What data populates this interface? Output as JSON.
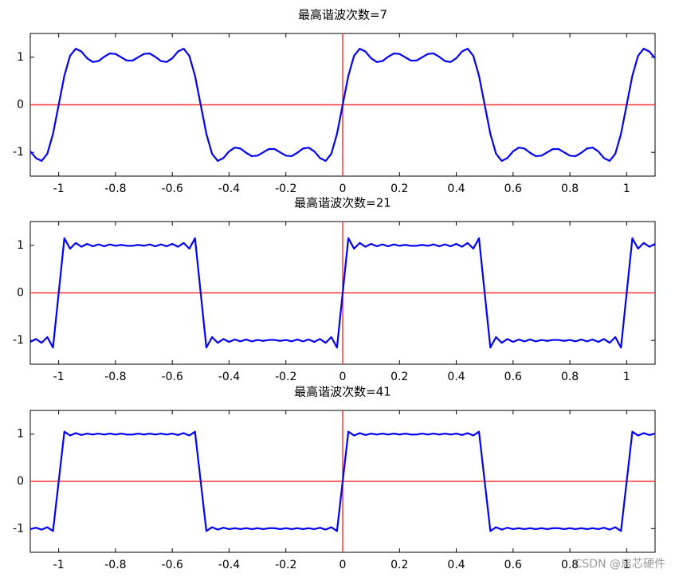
{
  "chart_data": [
    {
      "type": "line",
      "title": "最高谐波次数=7",
      "color": "#0000ff",
      "reference_color": "#ff3333",
      "xlim": [
        -1.1,
        1.1
      ],
      "ylim": [
        -1.5,
        1.5
      ],
      "xticks": [
        -1,
        -0.8,
        -0.6,
        -0.4,
        -0.2,
        0,
        0.2,
        0.4,
        0.6,
        0.8,
        1
      ],
      "yticks": [
        -1,
        0,
        1
      ],
      "x": [
        -1.1,
        -1.08,
        -1.06,
        -1.04,
        -1.02,
        -1,
        -0.98,
        -0.96,
        -0.94,
        -0.92,
        -0.9,
        -0.88,
        -0.86,
        -0.84,
        -0.82,
        -0.8,
        -0.78,
        -0.76,
        -0.74,
        -0.72,
        -0.7,
        -0.68,
        -0.66,
        -0.64,
        -0.62,
        -0.6,
        -0.58,
        -0.56,
        -0.54,
        -0.52,
        -0.5,
        -0.48,
        -0.46,
        -0.44,
        -0.42,
        -0.4,
        -0.38,
        -0.36,
        -0.34,
        -0.32,
        -0.3,
        -0.28,
        -0.26,
        -0.24,
        -0.22,
        -0.2,
        -0.18,
        -0.16,
        -0.14,
        -0.12,
        -0.1,
        -0.08,
        -0.06,
        -0.04,
        -0.02,
        0,
        0.02,
        0.04,
        0.06,
        0.08,
        0.1,
        0.12,
        0.14,
        0.16,
        0.18,
        0.2,
        0.22,
        0.24,
        0.26,
        0.28,
        0.3,
        0.32,
        0.34,
        0.36,
        0.38,
        0.4,
        0.42,
        0.44,
        0.46,
        0.48,
        0.5,
        0.52,
        0.54,
        0.56,
        0.58,
        0.6,
        0.62,
        0.64,
        0.66,
        0.68,
        0.7,
        0.72,
        0.74,
        0.76,
        0.78,
        0.8,
        0.82,
        0.84,
        0.86,
        0.88,
        0.9,
        0.92,
        0.94,
        0.96,
        0.98,
        1,
        1.02,
        1.04,
        1.06,
        1.08,
        1.1
      ],
      "values": [
        -0.98,
        -1.12,
        -1.18,
        -1.03,
        -0.61,
        0,
        0.61,
        1.03,
        1.18,
        1.12,
        0.98,
        0.9,
        0.92,
        1.01,
        1.08,
        1.07,
        1,
        0.93,
        0.93,
        1,
        1.07,
        1.08,
        1.01,
        0.92,
        0.9,
        0.98,
        1.12,
        1.18,
        1.03,
        0.61,
        0,
        -0.61,
        -1.03,
        -1.18,
        -1.12,
        -0.98,
        -0.9,
        -0.92,
        -1.01,
        -1.08,
        -1.07,
        -1,
        -0.93,
        -0.93,
        -1,
        -1.07,
        -1.08,
        -1.01,
        -0.92,
        -0.9,
        -0.98,
        -1.12,
        -1.18,
        -1.03,
        -0.61,
        0,
        0.61,
        1.03,
        1.18,
        1.12,
        0.98,
        0.9,
        0.92,
        1.01,
        1.08,
        1.07,
        1,
        0.93,
        0.93,
        1,
        1.07,
        1.08,
        1.01,
        0.92,
        0.9,
        0.98,
        1.12,
        1.18,
        1.03,
        0.61,
        0,
        -0.61,
        -1.03,
        -1.18,
        -1.12,
        -0.98,
        -0.9,
        -0.92,
        -1.01,
        -1.08,
        -1.07,
        -1,
        -0.93,
        -0.93,
        -1,
        -1.07,
        -1.08,
        -1.01,
        -0.92,
        -0.9,
        -0.98,
        -1.12,
        -1.18,
        -1.03,
        -0.61,
        0,
        0.61,
        1.03,
        1.18,
        1.12,
        0.98
      ]
    },
    {
      "type": "line",
      "title": "最高谐波次数=21",
      "color": "#0000ff",
      "reference_color": "#ff3333",
      "xlim": [
        -1.1,
        1.1
      ],
      "ylim": [
        -1.5,
        1.5
      ],
      "xticks": [
        -1,
        -0.8,
        -0.6,
        -0.4,
        -0.2,
        0,
        0.2,
        0.4,
        0.6,
        0.8,
        1
      ],
      "yticks": [
        -1,
        0,
        1
      ],
      "x": [
        -1.1,
        -1.08,
        -1.06,
        -1.04,
        -1.02,
        -1,
        -0.98,
        -0.96,
        -0.94,
        -0.92,
        -0.9,
        -0.88,
        -0.86,
        -0.84,
        -0.82,
        -0.8,
        -0.78,
        -0.76,
        -0.74,
        -0.72,
        -0.7,
        -0.68,
        -0.66,
        -0.64,
        -0.62,
        -0.6,
        -0.58,
        -0.56,
        -0.54,
        -0.52,
        -0.5,
        -0.48,
        -0.46,
        -0.44,
        -0.42,
        -0.4,
        -0.38,
        -0.36,
        -0.34,
        -0.32,
        -0.3,
        -0.28,
        -0.26,
        -0.24,
        -0.22,
        -0.2,
        -0.18,
        -0.16,
        -0.14,
        -0.12,
        -0.1,
        -0.08,
        -0.06,
        -0.04,
        -0.02,
        0,
        0.02,
        0.04,
        0.06,
        0.08,
        0.1,
        0.12,
        0.14,
        0.16,
        0.18,
        0.2,
        0.22,
        0.24,
        0.26,
        0.28,
        0.3,
        0.32,
        0.34,
        0.36,
        0.38,
        0.4,
        0.42,
        0.44,
        0.46,
        0.48,
        0.5,
        0.52,
        0.54,
        0.56,
        0.58,
        0.6,
        0.62,
        0.64,
        0.66,
        0.68,
        0.7,
        0.72,
        0.74,
        0.76,
        0.78,
        0.8,
        0.82,
        0.84,
        0.86,
        0.88,
        0.9,
        0.92,
        0.94,
        0.96,
        0.98,
        1,
        1.02,
        1.04,
        1.06,
        1.08,
        1.1
      ],
      "values": [
        -1.03,
        -0.97,
        -1.05,
        -0.93,
        -1.15,
        0,
        1.15,
        0.93,
        1.05,
        0.97,
        1.03,
        0.98,
        1.02,
        0.98,
        1.02,
        0.99,
        1.01,
        0.99,
        0.99,
        1.01,
        0.99,
        1.02,
        0.98,
        1.02,
        0.98,
        1.03,
        0.97,
        1.05,
        0.93,
        1.15,
        0,
        -1.15,
        -0.93,
        -1.05,
        -0.97,
        -1.03,
        -0.98,
        -1.02,
        -0.98,
        -1.02,
        -0.99,
        -1.01,
        -0.99,
        -0.99,
        -1.01,
        -0.99,
        -1.02,
        -0.98,
        -1.02,
        -0.98,
        -1.03,
        -0.97,
        -1.05,
        -0.93,
        -1.15,
        0,
        1.15,
        0.93,
        1.05,
        0.97,
        1.03,
        0.98,
        1.02,
        0.98,
        1.02,
        0.99,
        1.01,
        0.99,
        0.99,
        1.01,
        0.99,
        1.02,
        0.98,
        1.02,
        0.98,
        1.03,
        0.97,
        1.05,
        0.93,
        1.15,
        0,
        -1.15,
        -0.93,
        -1.05,
        -0.97,
        -1.03,
        -0.98,
        -1.02,
        -0.98,
        -1.02,
        -0.99,
        -1.01,
        -0.99,
        -0.99,
        -1.01,
        -0.99,
        -1.02,
        -0.98,
        -1.02,
        -0.98,
        -1.03,
        -0.97,
        -1.05,
        -0.93,
        -1.15,
        0,
        1.15,
        0.93,
        1.05,
        0.97,
        1.03
      ]
    },
    {
      "type": "line",
      "title": "最高谐波次数=41",
      "color": "#0000ff",
      "reference_color": "#ff3333",
      "xlim": [
        -1.1,
        1.1
      ],
      "ylim": [
        -1.5,
        1.5
      ],
      "xticks": [
        -1,
        -0.8,
        -0.6,
        -0.4,
        -0.2,
        0,
        0.2,
        0.4,
        0.6,
        0.8,
        1
      ],
      "yticks": [
        -1,
        0,
        1
      ],
      "x": [
        -1.1,
        -1.08,
        -1.06,
        -1.04,
        -1.02,
        -1,
        -0.98,
        -0.96,
        -0.94,
        -0.92,
        -0.9,
        -0.88,
        -0.86,
        -0.84,
        -0.82,
        -0.8,
        -0.78,
        -0.76,
        -0.74,
        -0.72,
        -0.7,
        -0.68,
        -0.66,
        -0.64,
        -0.62,
        -0.6,
        -0.58,
        -0.56,
        -0.54,
        -0.52,
        -0.5,
        -0.48,
        -0.46,
        -0.44,
        -0.42,
        -0.4,
        -0.38,
        -0.36,
        -0.34,
        -0.32,
        -0.3,
        -0.28,
        -0.26,
        -0.24,
        -0.22,
        -0.2,
        -0.18,
        -0.16,
        -0.14,
        -0.12,
        -0.1,
        -0.08,
        -0.06,
        -0.04,
        -0.02,
        0,
        0.02,
        0.04,
        0.06,
        0.08,
        0.1,
        0.12,
        0.14,
        0.16,
        0.18,
        0.2,
        0.22,
        0.24,
        0.26,
        0.28,
        0.3,
        0.32,
        0.34,
        0.36,
        0.38,
        0.4,
        0.42,
        0.44,
        0.46,
        0.48,
        0.5,
        0.52,
        0.54,
        0.56,
        0.58,
        0.6,
        0.62,
        0.64,
        0.66,
        0.68,
        0.7,
        0.72,
        0.74,
        0.76,
        0.78,
        0.8,
        0.82,
        0.84,
        0.86,
        0.88,
        0.9,
        0.92,
        0.94,
        0.96,
        0.98,
        1,
        1.02,
        1.04,
        1.06,
        1.08,
        1.1
      ],
      "values": [
        -1.01,
        -0.98,
        -1.02,
        -0.97,
        -1.05,
        0,
        1.05,
        0.97,
        1.02,
        0.98,
        1.01,
        0.99,
        1.01,
        0.99,
        1.01,
        0.99,
        1.01,
        0.99,
        0.99,
        1.01,
        0.99,
        1.01,
        0.99,
        1.01,
        0.99,
        1.01,
        0.98,
        1.02,
        0.97,
        1.05,
        0,
        -1.05,
        -0.97,
        -1.02,
        -0.98,
        -1.01,
        -0.99,
        -1.01,
        -0.99,
        -1.01,
        -0.99,
        -1.01,
        -0.99,
        -0.99,
        -1.01,
        -0.99,
        -1.01,
        -0.99,
        -1.01,
        -0.99,
        -1.01,
        -0.98,
        -1.02,
        -0.97,
        -1.05,
        0,
        1.05,
        0.97,
        1.02,
        0.98,
        1.01,
        0.99,
        1.01,
        0.99,
        1.01,
        0.99,
        1.01,
        0.99,
        0.99,
        1.01,
        0.99,
        1.01,
        0.99,
        1.01,
        0.99,
        1.01,
        0.98,
        1.02,
        0.97,
        1.05,
        0,
        -1.05,
        -0.97,
        -1.02,
        -0.98,
        -1.01,
        -0.99,
        -1.01,
        -0.99,
        -1.01,
        -0.99,
        -1.01,
        -0.99,
        -0.99,
        -1.01,
        -0.99,
        -1.01,
        -0.99,
        -1.01,
        -0.99,
        -1.01,
        -0.98,
        -1.02,
        -0.97,
        -1.05,
        0,
        1.05,
        0.97,
        1.02,
        0.98,
        1.01
      ]
    }
  ],
  "watermark": "CSDN @启芯硬件"
}
